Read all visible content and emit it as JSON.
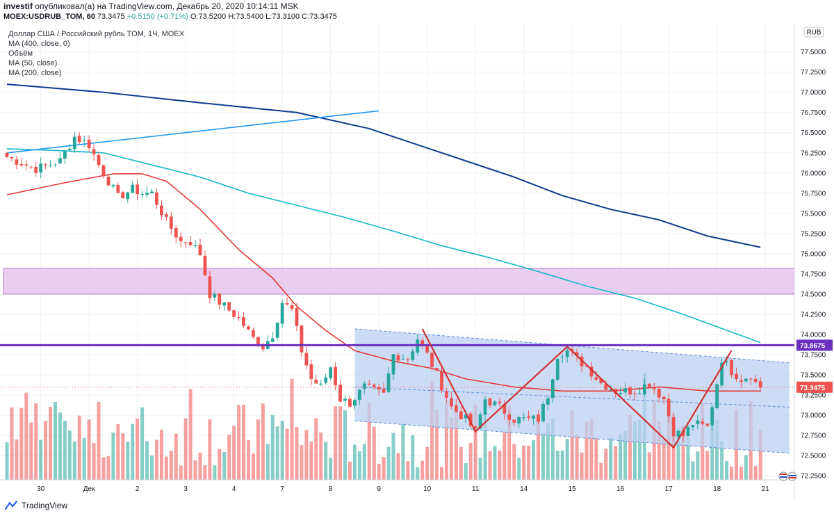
{
  "header": {
    "author": "investif",
    "published_text": "опубликовал(а) на TradingView.com, Декабрь 20, 2020 10:14:11 MSK",
    "symbol": "MOEX:USDRUB_TOM, 60",
    "last": "73.3475",
    "change": "+0.5150 (+0.71%)",
    "ohlc": {
      "o_label": "O:",
      "o": "73.5200",
      "h_label": "H:",
      "h": "73.5400",
      "l_label": "L:",
      "l": "73.3100",
      "c_label": "C:",
      "c": "73.3475"
    }
  },
  "legend": {
    "title": "Доллар США / Российский рубль TOM, 1Ч, MOEX",
    "lines": [
      "MA (400, close, 0)",
      "Объём",
      "MA (50, close)",
      "MA (200, close)"
    ]
  },
  "currency_badge": "RUB",
  "footer": {
    "brand": "TradingView"
  },
  "colors": {
    "bull": "#26a69a",
    "bear": "#ef5350",
    "ma_red": "#e53935",
    "ma_cyan": "#14b8c8",
    "ma_navy": "#0d3b8c",
    "trend_blue": "#2196f3",
    "channel_fill": "#bcd0f2",
    "resistance": "#6a2fc0",
    "zone_fill": "#e8c9ee",
    "pattern": "#d32f2f"
  },
  "chart_data": {
    "type": "candlestick",
    "title": "Доллар США / Российский рубль TOM, 1Ч, MOEX",
    "ylim": [
      72.2,
      77.85
    ],
    "y_ticks": [
      "77.5000",
      "77.2500",
      "77.0000",
      "76.7500",
      "76.5000",
      "76.2500",
      "76.0000",
      "75.7500",
      "75.5000",
      "75.2500",
      "75.0000",
      "74.7500",
      "74.5000",
      "74.2500",
      "74.0000",
      "73.7500",
      "73.5000",
      "73.2500",
      "73.0000",
      "72.7500",
      "72.5000",
      "72.2500"
    ],
    "y_tick_values": [
      77.5,
      77.25,
      77.0,
      76.75,
      76.5,
      76.25,
      76.0,
      75.75,
      75.5,
      75.25,
      75.0,
      74.75,
      74.5,
      74.25,
      74.0,
      73.75,
      73.5,
      73.25,
      73.0,
      72.75,
      72.5,
      72.25
    ],
    "x_tick_labels": [
      "30",
      "Дек",
      "2",
      "3",
      "4",
      "7",
      "8",
      "9",
      "10",
      "11",
      "14",
      "15",
      "16",
      "17",
      "18",
      "21"
    ],
    "x_tick_index": [
      7,
      17,
      27,
      37,
      47,
      57,
      67,
      77,
      87,
      97,
      107,
      117,
      127,
      137,
      147,
      157
    ],
    "bar_count": 157,
    "price_path": [
      [
        0,
        76.2
      ],
      [
        6,
        76.05
      ],
      [
        11,
        76.15
      ],
      [
        14,
        76.45
      ],
      [
        17,
        76.35
      ],
      [
        19,
        76.1
      ],
      [
        21,
        75.9
      ],
      [
        23,
        75.7
      ],
      [
        26,
        75.8
      ],
      [
        28,
        75.75
      ],
      [
        30,
        75.75
      ],
      [
        33,
        75.4
      ],
      [
        36,
        75.15
      ],
      [
        38,
        75.15
      ],
      [
        40,
        75.0
      ],
      [
        42,
        74.5
      ],
      [
        45,
        74.35
      ],
      [
        48,
        74.2
      ],
      [
        51,
        73.95
      ],
      [
        53,
        73.85
      ],
      [
        55,
        74.0
      ],
      [
        57,
        74.4
      ],
      [
        59,
        74.3
      ],
      [
        61,
        73.8
      ],
      [
        63,
        73.45
      ],
      [
        65,
        73.35
      ],
      [
        67,
        73.6
      ],
      [
        69,
        73.2
      ],
      [
        71,
        73.15
      ],
      [
        74,
        73.35
      ],
      [
        78,
        73.25
      ],
      [
        80,
        73.75
      ],
      [
        83,
        73.7
      ],
      [
        85,
        73.95
      ],
      [
        87,
        73.75
      ],
      [
        89,
        73.5
      ],
      [
        92,
        73.1
      ],
      [
        95,
        72.95
      ],
      [
        97,
        72.8
      ],
      [
        99,
        73.2
      ],
      [
        102,
        73.1
      ],
      [
        105,
        72.95
      ],
      [
        108,
        72.95
      ],
      [
        110,
        72.95
      ],
      [
        112,
        73.25
      ],
      [
        114,
        73.75
      ],
      [
        116,
        73.8
      ],
      [
        118,
        73.7
      ],
      [
        120,
        73.6
      ],
      [
        123,
        73.4
      ],
      [
        126,
        73.3
      ],
      [
        130,
        73.3
      ],
      [
        133,
        73.4
      ],
      [
        136,
        73.2
      ],
      [
        138,
        72.8
      ],
      [
        140,
        72.75
      ],
      [
        142,
        72.9
      ],
      [
        145,
        72.85
      ],
      [
        147,
        73.4
      ],
      [
        148,
        73.7
      ],
      [
        150,
        73.55
      ],
      [
        152,
        73.45
      ],
      [
        154,
        73.5
      ],
      [
        155,
        73.4
      ],
      [
        156,
        73.35
      ]
    ],
    "series": [
      {
        "name": "MA (50, close)",
        "values": [
          [
            0,
            75.73
          ],
          [
            12,
            75.88
          ],
          [
            22,
            75.99
          ],
          [
            28,
            75.99
          ],
          [
            33,
            75.9
          ],
          [
            40,
            75.55
          ],
          [
            48,
            75.05
          ],
          [
            55,
            74.7
          ],
          [
            60,
            74.35
          ],
          [
            66,
            74.05
          ],
          [
            72,
            73.8
          ],
          [
            80,
            73.67
          ],
          [
            88,
            73.58
          ],
          [
            95,
            73.45
          ],
          [
            105,
            73.35
          ],
          [
            115,
            73.3
          ],
          [
            125,
            73.3
          ],
          [
            135,
            73.35
          ],
          [
            145,
            73.3
          ],
          [
            156,
            73.3
          ]
        ]
      },
      {
        "name": "MA (200, close)",
        "values": [
          [
            0,
            76.3
          ],
          [
            10,
            76.28
          ],
          [
            20,
            76.25
          ],
          [
            30,
            76.1
          ],
          [
            40,
            75.95
          ],
          [
            50,
            75.75
          ],
          [
            60,
            75.6
          ],
          [
            70,
            75.45
          ],
          [
            80,
            75.28
          ],
          [
            90,
            75.1
          ],
          [
            100,
            74.95
          ],
          [
            110,
            74.78
          ],
          [
            120,
            74.6
          ],
          [
            130,
            74.45
          ],
          [
            140,
            74.25
          ],
          [
            150,
            74.03
          ],
          [
            156,
            73.9
          ]
        ]
      },
      {
        "name": "MA (400, close, 0)",
        "values": [
          [
            0,
            77.1
          ],
          [
            20,
            77.0
          ],
          [
            40,
            76.87
          ],
          [
            60,
            76.75
          ],
          [
            75,
            76.55
          ],
          [
            85,
            76.35
          ],
          [
            95,
            76.15
          ],
          [
            105,
            75.95
          ],
          [
            115,
            75.72
          ],
          [
            125,
            75.55
          ],
          [
            135,
            75.42
          ],
          [
            145,
            75.22
          ],
          [
            156,
            75.08
          ]
        ]
      }
    ],
    "drawings": {
      "trendline": {
        "from": [
          0,
          76.25
        ],
        "to": [
          77,
          76.77
        ]
      },
      "resistance_level": 73.8675,
      "zone": [
        74.5,
        74.82
      ],
      "channel": {
        "start_index": 72,
        "end_index": 162,
        "top": [
          74.07,
          73.65
        ],
        "bottom": [
          72.93,
          72.53
        ],
        "mid": [
          73.35,
          73.1
        ]
      },
      "pattern": [
        [
          86,
          74.07
        ],
        [
          97,
          72.8
        ],
        [
          116,
          73.85
        ],
        [
          138,
          72.6
        ],
        [
          150,
          73.8
        ]
      ]
    },
    "price_labels": [
      {
        "value": "73.8675",
        "y": 73.8675,
        "color": "#6a2fc0"
      },
      {
        "value": "73.3475",
        "y": 73.3475,
        "color": "#ef5350"
      }
    ]
  }
}
